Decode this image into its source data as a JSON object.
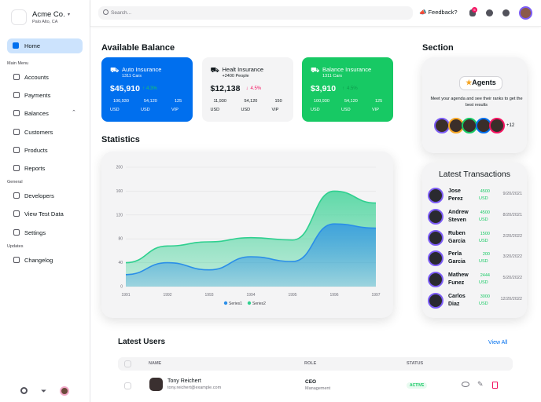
{
  "brand": {
    "name": "Acme Co.",
    "location": "Palo Alto, CA"
  },
  "nav": {
    "home": "Home",
    "sections": [
      {
        "label": "Main Menu",
        "items": [
          "Accounts",
          "Payments",
          "Balances",
          "Customers",
          "Products",
          "Reports"
        ]
      },
      {
        "label": "General",
        "items": [
          "Developers",
          "View Test Data",
          "Settings"
        ]
      },
      {
        "label": "Updates",
        "items": [
          "Changelog"
        ]
      }
    ]
  },
  "topbar": {
    "search_placeholder": "Search...",
    "feedback": "Feedback?",
    "badge": "5"
  },
  "balance": {
    "title": "Available Balance",
    "cards": [
      {
        "name": "Auto Insurance",
        "subtitle": "1311 Cars",
        "amount": "$45,910",
        "change": "4.3%",
        "stats": [
          {
            "value": "100,930",
            "unit": "USD"
          },
          {
            "value": "54,120",
            "unit": "USD"
          },
          {
            "value": "125",
            "unit": "VIP"
          }
        ]
      },
      {
        "name": "Healt Insurance",
        "subtitle": "+2400 People",
        "amount": "$12,138",
        "change": "4.5%",
        "stats": [
          {
            "value": "11,930",
            "unit": "USD"
          },
          {
            "value": "54,120",
            "unit": "USD"
          },
          {
            "value": "150",
            "unit": "VIP"
          }
        ]
      },
      {
        "name": "Balance Insurance",
        "subtitle": "1311 Cars",
        "amount": "$3,910",
        "change": "4.5%",
        "stats": [
          {
            "value": "100,930",
            "unit": "USD"
          },
          {
            "value": "54,120",
            "unit": "USD"
          },
          {
            "value": "125",
            "unit": "VIP"
          }
        ]
      }
    ]
  },
  "statistics": {
    "title": "Statistics",
    "chart_data": {
      "type": "area",
      "x": [
        "1991",
        "1992",
        "1993",
        "1994",
        "1995",
        "1996",
        "1997"
      ],
      "series": [
        {
          "name": "Series1",
          "color": "#2a8ee8",
          "values": [
            20,
            40,
            28,
            50,
            42,
            105,
            98
          ]
        },
        {
          "name": "Series2",
          "color": "#2fd08f",
          "values": [
            40,
            68,
            75,
            82,
            78,
            160,
            140
          ]
        }
      ],
      "ylim": [
        0,
        200
      ],
      "yticks": [
        0,
        40,
        80,
        120,
        160,
        200
      ],
      "grid": true
    }
  },
  "section": {
    "title": "Section",
    "agents": {
      "button": "Agents",
      "text": "Meet your agenda and see their ranks to get the best results",
      "more": "+12"
    }
  },
  "transactions": {
    "title": "Latest Transactions",
    "rows": [
      {
        "first": "Jose",
        "last": "Perez",
        "amount": "4500",
        "unit": "USD",
        "date": "9/20/2021"
      },
      {
        "first": "Andrew",
        "last": "Steven",
        "amount": "4500",
        "unit": "USD",
        "date": "8/20/2021"
      },
      {
        "first": "Ruben",
        "last": "Garcia",
        "amount": "1500",
        "unit": "USD",
        "date": "2/20/2022"
      },
      {
        "first": "Perla",
        "last": "Garcia",
        "amount": "200",
        "unit": "USD",
        "date": "3/20/2022"
      },
      {
        "first": "Mathew",
        "last": "Funez",
        "amount": "2444",
        "unit": "USD",
        "date": "5/20/2022"
      },
      {
        "first": "Carlos",
        "last": "Diaz",
        "amount": "3000",
        "unit": "USD",
        "date": "12/20/2022"
      }
    ]
  },
  "users": {
    "title": "Latest Users",
    "view_all": "View All",
    "columns": [
      "NAME",
      "ROLE",
      "STATUS"
    ],
    "rows": [
      {
        "name": "Tony Reichert",
        "email": "tony.reichert@example.com",
        "role": "CEO",
        "team": "Management",
        "status": "ACTIVE"
      }
    ]
  }
}
